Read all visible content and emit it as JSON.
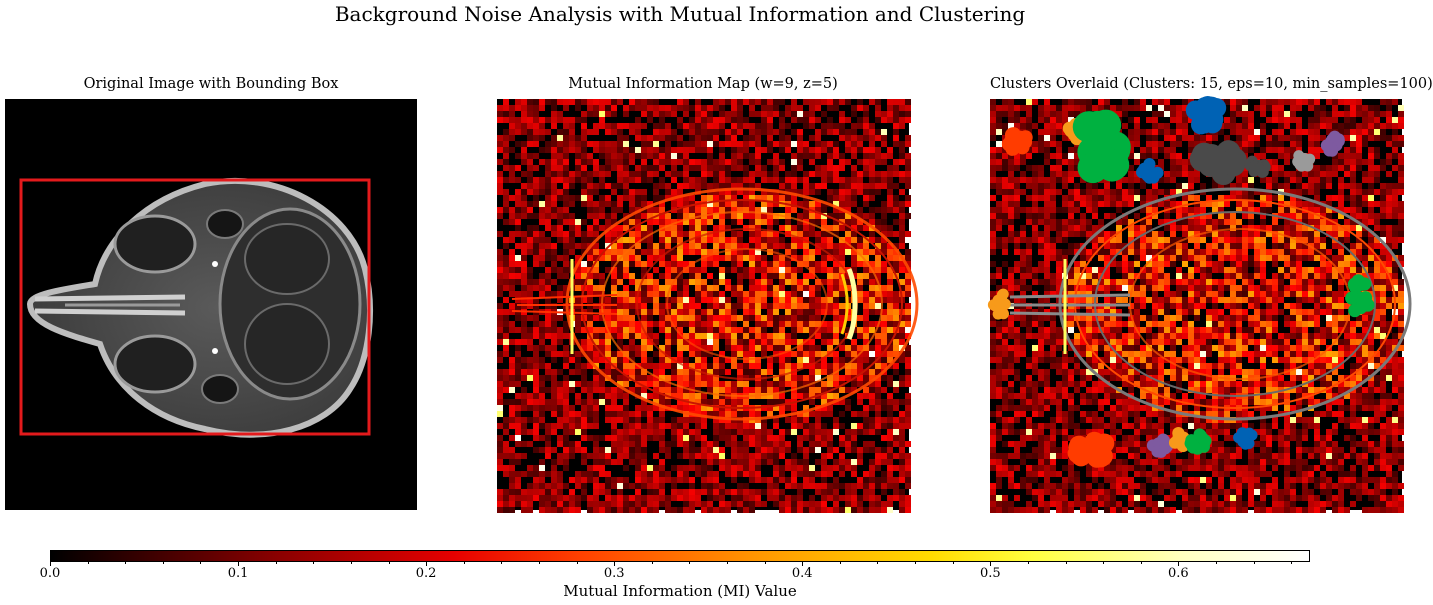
{
  "figure": {
    "suptitle": "Background Noise Analysis with Mutual Information and Clustering"
  },
  "panels": [
    {
      "title": "Original Image with Bounding Box"
    },
    {
      "title": "Mutual Information Map (w=9, z=5)"
    },
    {
      "title": "Clusters Overlaid (Clusters: 15, eps=10, min_samples=100)"
    }
  ],
  "chart_data": {
    "type": "heatmap",
    "colormap": "hot",
    "colorbar": {
      "label": "Mutual Information (MI) Value",
      "range": [
        0.0,
        0.67
      ],
      "ticks": [
        0.0,
        0.1,
        0.2,
        0.3,
        0.4,
        0.5,
        0.6
      ],
      "tick_labels": [
        "0.0",
        "0.1",
        "0.2",
        "0.3",
        "0.4",
        "0.5",
        "0.6"
      ],
      "orientation": "horizontal"
    },
    "bounding_box_color": "#e31a1c",
    "cluster_count": 15,
    "eps": 10,
    "min_samples": 100,
    "cluster_colors": [
      "#ff3c00",
      "#f79a1a",
      "#00b140",
      "#0062b4",
      "#4a4a4a",
      "#9a9a9a",
      "#7e5aa0"
    ]
  }
}
